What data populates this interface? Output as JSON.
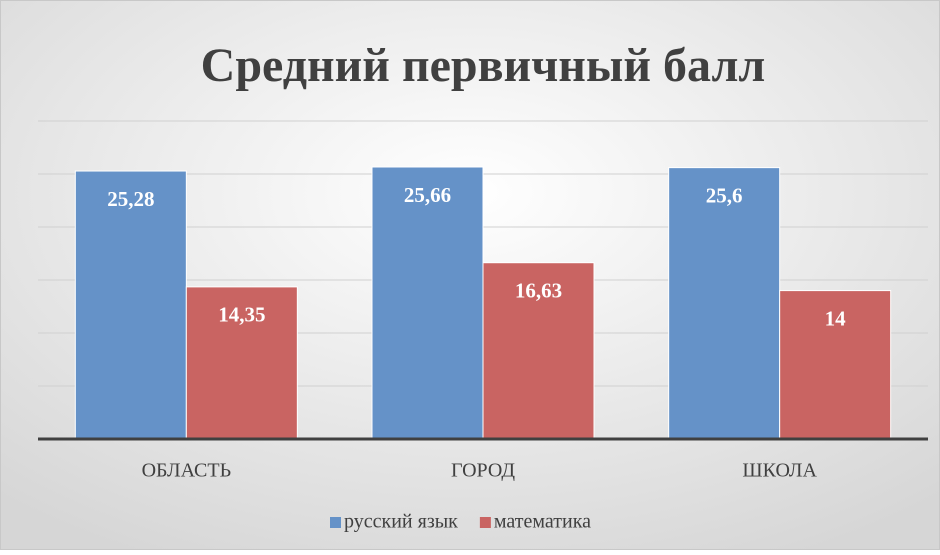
{
  "chart_data": {
    "type": "bar",
    "title": "Средний первичный балл",
    "categories": [
      "ОБЛАСТЬ",
      "ГОРОД",
      "ШКОЛА"
    ],
    "series": [
      {
        "name": "русский язык",
        "color": "#6592c8",
        "values": [
          25.28,
          25.66,
          25.6
        ],
        "value_labels": [
          "25,28",
          "25,66",
          "25,6"
        ]
      },
      {
        "name": "математика",
        "color": "#c96462",
        "values": [
          14.35,
          16.63,
          14
        ],
        "value_labels": [
          "14,35",
          "16,63",
          "14"
        ]
      }
    ],
    "ylim": [
      0,
      30
    ],
    "yticks": [
      0,
      5,
      10,
      15,
      20,
      25,
      30
    ],
    "grid": true,
    "legend": "bottom"
  }
}
